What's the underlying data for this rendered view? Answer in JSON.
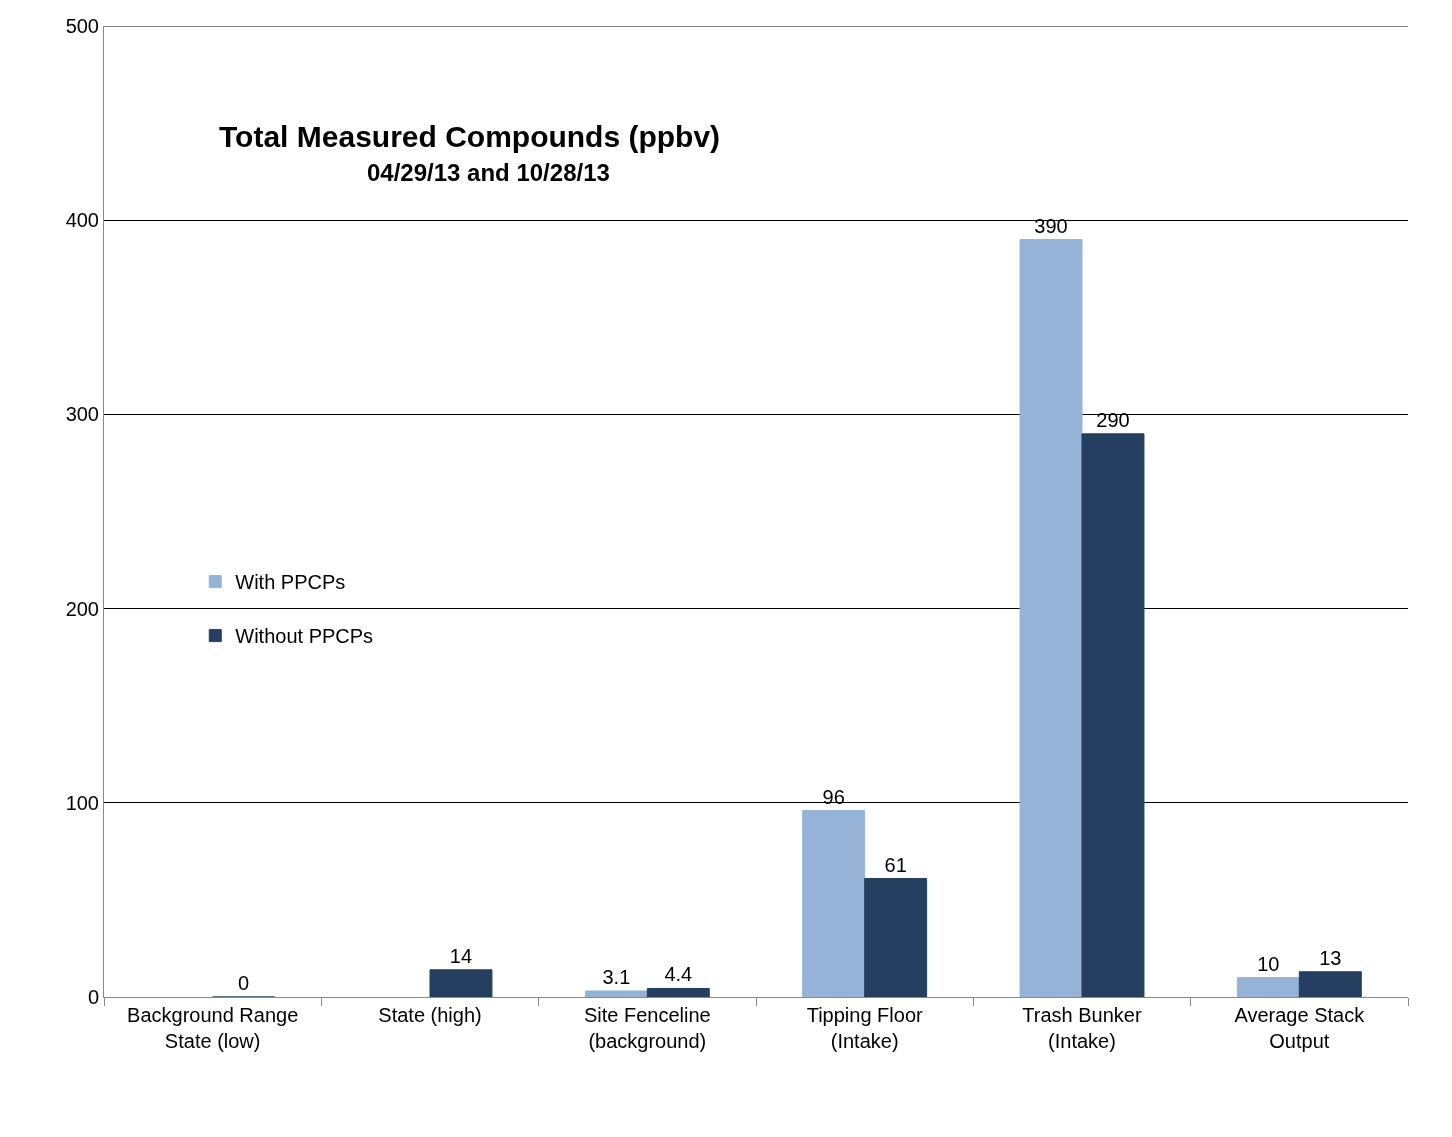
{
  "chart_data": {
    "type": "bar",
    "title": "Total Measured Compounds (ppbv)",
    "subtitle": "04/29/13 and 10/28/13",
    "categories": [
      "Background Range\nState (low)",
      "State (high)",
      "Site Fenceline\n(background)",
      "Tipping Floor\n(Intake)",
      "Trash Bunker\n(Intake)",
      "Average Stack\nOutput"
    ],
    "series": [
      {
        "name": "With PPCPs",
        "color": "#95b3d7",
        "values": [
          null,
          null,
          3.1,
          96,
          390,
          10
        ]
      },
      {
        "name": "Without PPCPs",
        "color": "#243f60",
        "values": [
          0,
          14,
          4.4,
          61,
          290,
          13
        ]
      }
    ],
    "ylim": [
      0,
      500
    ],
    "yticks": [
      0,
      100,
      200,
      300,
      400,
      500
    ],
    "grid": "y",
    "legend": "left",
    "data_labels": true
  }
}
